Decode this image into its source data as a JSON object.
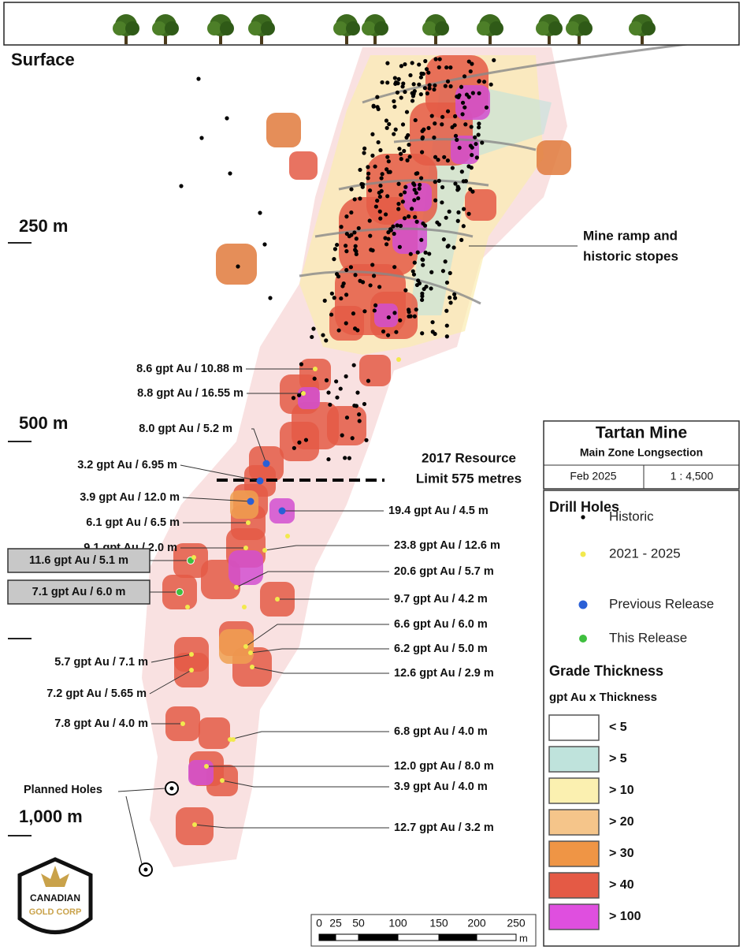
{
  "map": {
    "surface": "Surface",
    "depths": [
      "250 m",
      "500 m",
      "1,000 m"
    ],
    "ramp_label": [
      "Mine ramp and",
      "historic stopes"
    ],
    "resource_label": [
      "2017 Resource",
      "Limit 575 metres"
    ],
    "planned_holes": "Planned Holes",
    "intercepts_left": [
      "8.6 gpt Au / 10.88 m",
      "8.8 gpt Au / 16.55 m",
      "8.0 gpt Au / 5.2 m",
      "3.2 gpt Au / 6.95 m",
      "3.9 gpt Au / 12.0 m",
      "6.1 gpt Au / 6.5 m",
      "9.1 gpt Au / 2.0 m",
      "11.6 gpt Au / 5.1 m",
      "7.1 gpt Au / 6.0 m",
      "5.7 gpt Au / 7.1 m",
      "7.2 gpt Au / 5.65 m",
      "7.8 gpt Au / 4.0 m"
    ],
    "intercepts_right": [
      "19.4 gpt Au / 4.5 m",
      "23.8 gpt Au / 12.6 m",
      "20.6 gpt Au / 5.7 m",
      "9.7 gpt Au / 4.2 m",
      "6.6 gpt Au / 6.0 m",
      "6.2 gpt Au / 5.0 m",
      "12.6 gpt Au / 2.9 m",
      "6.8 gpt Au / 4.0 m",
      "12.0 gpt Au / 8.0 m",
      "3.9 gpt Au / 4.0 m",
      "12.7 gpt Au / 3.2 m"
    ],
    "title_box": {
      "title": "Tartan Mine",
      "subtitle": "Main Zone Longsection",
      "date": "Feb 2025",
      "scale": "1 : 4,500"
    },
    "legend": {
      "drill_title": "Drill Holes",
      "drill_holes": [
        "Historic",
        "2021 - 2025",
        "Previous Release",
        "This Release"
      ],
      "grade_title": "Grade Thickness",
      "grade_subtitle": "gpt Au x Thickness",
      "grade_classes": [
        "< 5",
        "> 5",
        "> 10",
        "> 20",
        "> 30",
        "> 40",
        "> 100"
      ]
    },
    "scale_bar": {
      "ticks": [
        0,
        25,
        50,
        100,
        150,
        200,
        250
      ],
      "unit": "m"
    },
    "logo": [
      "CANADIAN",
      "GOLD CORP"
    ]
  }
}
